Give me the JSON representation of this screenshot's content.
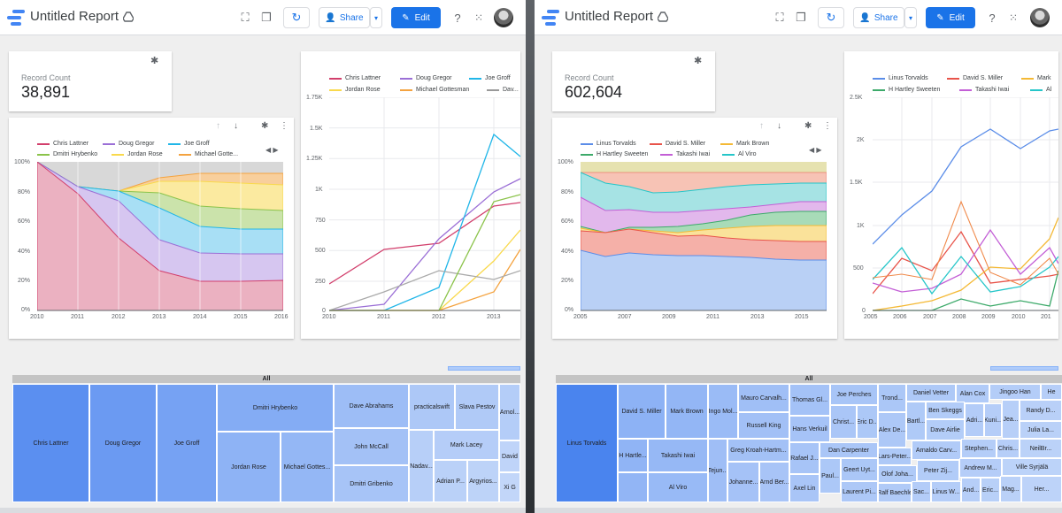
{
  "left": {
    "app": {
      "title": "Untitled Report",
      "share_label": "Share",
      "edit_label": "Edit"
    },
    "kpi": {
      "label": "Record Count",
      "value": "38,891"
    },
    "area_chart": {
      "legend": [
        "Chris Lattner",
        "Doug Gregor",
        "Joe Groff",
        "Dmitri Hrybenko",
        "Jordan Rose",
        "Michael Gotte..."
      ],
      "y_ticks": [
        "100%",
        "80%",
        "60%",
        "40%",
        "20%",
        "0%"
      ],
      "x_ticks": [
        "2010",
        "2011",
        "2012",
        "2013",
        "2014",
        "2015",
        "2016"
      ]
    },
    "line_chart": {
      "legend": [
        "Chris Lattner",
        "Doug Gregor",
        "Joe Groff",
        "Jordan Rose",
        "Michael Gottesman",
        "Dav..."
      ],
      "y_ticks": [
        "1.75K",
        "1.5K",
        "1.25K",
        "1K",
        "750",
        "500",
        "250",
        "0"
      ],
      "x_ticks": [
        "2010",
        "2011",
        "2012",
        "2013"
      ]
    },
    "treemap": {
      "header": "All",
      "cells": [
        "Chris Lattner",
        "Doug Gregor",
        "Joe Groff",
        "Dmitri Hrybenko",
        "Jordan Rose",
        "Michael Gottes...",
        "Dave Abrahams",
        "John McCall",
        "Dmitri Gribenko",
        "practicalswift",
        "Slava Pestov",
        "Arnol...",
        "Mark Lacey",
        "Nadav...",
        "Adrian P...",
        "Argyrios...",
        "David",
        "Xi G"
      ]
    }
  },
  "right": {
    "app": {
      "title": "Untitled Report",
      "share_label": "Share",
      "edit_label": "Edit"
    },
    "kpi": {
      "label": "Record Count",
      "value": "602,604"
    },
    "area_chart": {
      "legend": [
        "Linus Torvalds",
        "David S. Miller",
        "Mark Brown",
        "H Hartley Sweeten",
        "Takashi Iwai",
        "Al Viro"
      ],
      "y_ticks": [
        "100%",
        "80%",
        "60%",
        "40%",
        "20%",
        "0%"
      ],
      "x_ticks": [
        "2005",
        "2007",
        "2009",
        "2011",
        "2013",
        "2015"
      ]
    },
    "line_chart": {
      "legend": [
        "Linus Torvalds",
        "David S. Miller",
        "Mark",
        "H Hartley Sweeten",
        "Takashi Iwai",
        "Al"
      ],
      "y_ticks": [
        "2.5K",
        "2K",
        "1.5K",
        "1K",
        "500",
        "0"
      ],
      "x_ticks": [
        "2005",
        "2006",
        "2007",
        "2008",
        "2009",
        "2010",
        "201"
      ]
    },
    "treemap": {
      "header": "All",
      "cells": [
        "Linus Torvalds",
        "David S. Miller",
        "Mark Brown",
        "Ingo Mol...",
        "Mauro Carvalh...",
        "Thomas Gl...",
        "Joe Perches",
        "Trond...",
        "Daniel Vetter",
        "Alan Cox",
        "Jingoo Han",
        "He",
        "Russell King",
        "Hans Verkuil",
        "Christ...",
        "Eric D...",
        "Bartl...",
        "Ben Skeggs",
        "Adri...",
        "Kuni...",
        "Jea...",
        "Randy D...",
        "Alex De...",
        "Dave Airlie",
        "Julia La...",
        "Takashi Iwai",
        "Greg Kroah-Hartm...",
        "Dan Carpenter",
        "Lars-Peter...",
        "Arnaldo Carv...",
        "Stephen...",
        "Chris...",
        "NeilBr...",
        "H Hartle...",
        "Rafael J...",
        "Geert Uyt...",
        "Olof Joha...",
        "Peter Zij...",
        "Andrew M...",
        "Ville Syrjälä",
        "Tejun...",
        "Johanne...",
        "Arnd Ber...",
        "Paul...",
        "Sac...",
        "Al Viro",
        "Axel Lin",
        "Laurent Pi...",
        "Ralf Baechle",
        "Linus W...",
        "And...",
        "Eric...",
        "Mag...",
        "Her..."
      ]
    }
  },
  "colors": {
    "accent": "#1a73e8",
    "s1": "#d23f6c",
    "s2": "#9b6fd6",
    "s3": "#21b6e8",
    "s4": "#8bc34a",
    "s5": "#f9d94c",
    "s6": "#f4a340",
    "r1": "#5b8de8",
    "r2": "#e8544a",
    "r3": "#f4b935",
    "r4": "#3daa6a",
    "r5": "#c35fd6",
    "r6": "#26c6c9"
  }
}
